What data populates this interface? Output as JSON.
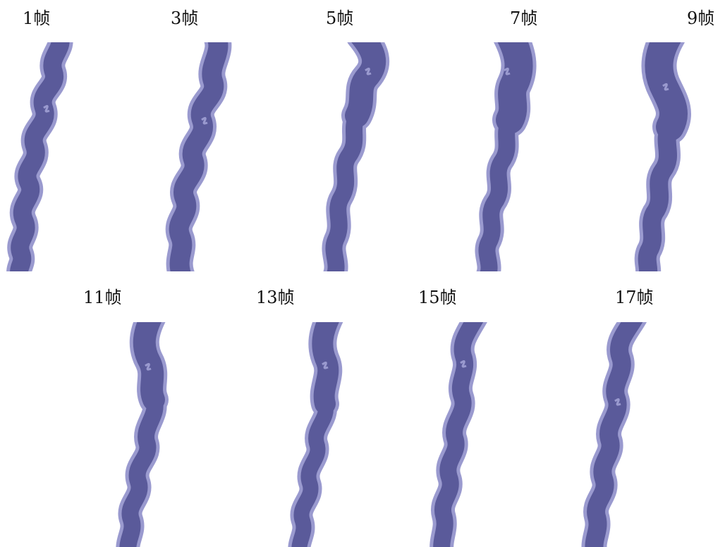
{
  "frames": [
    {
      "label": "1帧"
    },
    {
      "label": "3帧"
    },
    {
      "label": "5帧"
    },
    {
      "label": "7帧"
    },
    {
      "label": "9帧"
    },
    {
      "label": "11帧"
    },
    {
      "label": "13帧"
    },
    {
      "label": "15帧"
    },
    {
      "label": "17帧"
    }
  ],
  "colors": {
    "smoke_fill": "#5A5A9A",
    "smoke_outline": "#9A9ACF",
    "label_text": "#111111",
    "background": "#FFFFFF"
  }
}
